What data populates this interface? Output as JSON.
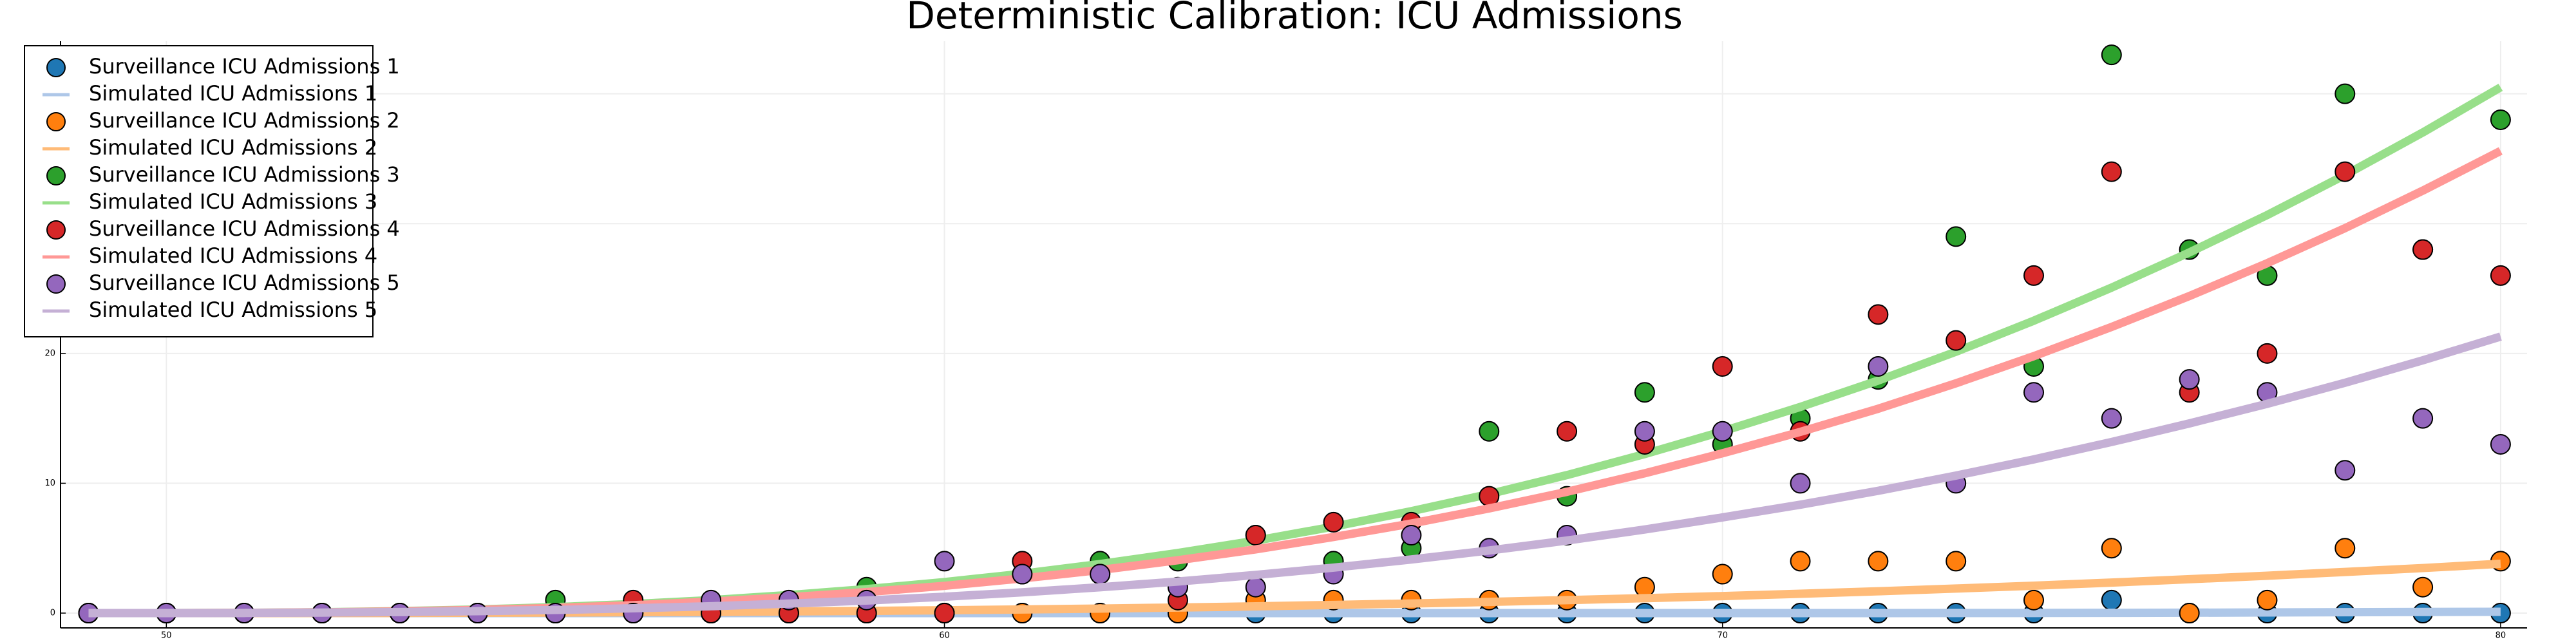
{
  "chart_data": {
    "type": "scatter",
    "title": "Deterministic Calibration: ICU Admissions",
    "x": [
      49,
      50,
      51,
      52,
      53,
      54,
      55,
      56,
      57,
      58,
      59,
      60,
      61,
      62,
      63,
      64,
      65,
      66,
      67,
      68,
      69,
      70,
      71,
      72,
      73,
      74,
      75,
      76,
      77,
      78,
      79,
      80
    ],
    "xlim": [
      48.64,
      80.34
    ],
    "xticks": [
      50,
      60,
      70,
      80
    ],
    "ylim": [
      -1.14,
      44.05
    ],
    "yticks": [
      0,
      10,
      20,
      30,
      40
    ],
    "grid": true,
    "legend": "upper left",
    "series": [
      {
        "name": "Surveillance ICU Admissions 1",
        "type": "scatter",
        "color": "#1f77b4",
        "values": [
          0,
          0,
          0,
          0,
          0,
          0,
          0,
          0,
          0,
          0,
          0,
          0,
          0,
          0,
          0,
          0,
          0,
          0,
          0,
          0,
          0,
          0,
          0,
          0,
          0,
          0,
          1,
          0,
          0,
          0,
          0,
          0
        ]
      },
      {
        "name": "Simulated ICU Admissions 1",
        "type": "line",
        "color": "#aec7e8",
        "values": [
          0,
          0,
          0,
          0,
          0,
          0,
          0,
          0,
          0,
          0,
          0,
          0,
          0,
          0,
          0,
          0,
          0,
          0,
          0,
          0,
          0,
          0,
          0,
          0,
          0.01,
          0.01,
          0.02,
          0.03,
          0.05,
          0.07,
          0.09,
          0.1
        ]
      },
      {
        "name": "Surveillance ICU Admissions 2",
        "type": "scatter",
        "color": "#ff7f0e",
        "values": [
          0,
          0,
          0,
          0,
          0,
          0,
          0,
          0,
          0,
          0,
          0,
          0,
          0,
          0,
          0,
          1,
          1,
          1,
          1,
          1,
          2,
          3,
          4,
          4,
          4,
          1,
          5,
          0,
          1,
          5,
          2,
          4
        ]
      },
      {
        "name": "Simulated ICU Admissions 2",
        "type": "line",
        "color": "#ffbb78",
        "values": [
          0,
          0,
          0,
          0.01,
          0.01,
          0.03,
          0.04,
          0.07,
          0.09,
          0.13,
          0.17,
          0.22,
          0.28,
          0.35,
          0.43,
          0.52,
          0.63,
          0.74,
          0.86,
          1,
          1.15,
          1.31,
          1.49,
          1.68,
          1.89,
          2.11,
          2.35,
          2.61,
          2.88,
          3.17,
          3.47,
          3.8
        ]
      },
      {
        "name": "Surveillance ICU Admissions 3",
        "type": "scatter",
        "color": "#2ca02c",
        "values": [
          0,
          0,
          0,
          0,
          0,
          0,
          1,
          0,
          0,
          0,
          2,
          0,
          3,
          4,
          4,
          6,
          4,
          5,
          14,
          9,
          17,
          13,
          15,
          18,
          29,
          19,
          43,
          28,
          26,
          40,
          28,
          38
        ]
      },
      {
        "name": "Simulated ICU Admissions 3",
        "type": "line",
        "color": "#98df8a",
        "values": [
          0,
          0,
          0.02,
          0.07,
          0.15,
          0.28,
          0.46,
          0.7,
          1,
          1.39,
          1.85,
          2.39,
          3.03,
          3.78,
          4.63,
          5.58,
          6.66,
          7.85,
          9.17,
          10.63,
          12.25,
          14,
          15.88,
          17.91,
          20.13,
          22.52,
          25.07,
          27.78,
          30.66,
          33.74,
          37.02,
          40.5
        ]
      },
      {
        "name": "Surveillance ICU Admissions 4",
        "type": "scatter",
        "color": "#d62728",
        "values": [
          0,
          0,
          0,
          0,
          0,
          0,
          0,
          1,
          0,
          0,
          0,
          0,
          4,
          3,
          1,
          6,
          7,
          7,
          9,
          14,
          13,
          19,
          14,
          23,
          21,
          26,
          34,
          17,
          20,
          34,
          28,
          26
        ]
      },
      {
        "name": "Simulated ICU Admissions 4",
        "type": "line",
        "color": "#ff9896",
        "values": [
          0,
          0,
          0.02,
          0.06,
          0.13,
          0.25,
          0.4,
          0.61,
          0.88,
          1.22,
          1.62,
          2.1,
          2.67,
          3.32,
          4.07,
          4.91,
          5.86,
          6.9,
          8.06,
          9.34,
          10.77,
          12.31,
          13.96,
          15.74,
          17.7,
          19.79,
          22.04,
          24.42,
          26.95,
          29.65,
          32.54,
          35.6
        ]
      },
      {
        "name": "Surveillance ICU Admissions 5",
        "type": "scatter",
        "color": "#9467bd",
        "values": [
          0,
          0,
          0,
          0,
          0,
          0,
          0,
          0,
          1,
          1,
          1,
          4,
          3,
          3,
          2,
          2,
          3,
          6,
          5,
          6,
          14,
          14,
          10,
          19,
          10,
          17,
          15,
          18,
          17,
          11,
          15,
          13
        ]
      },
      {
        "name": "Simulated ICU Admissions 5",
        "type": "line",
        "color": "#c5b0d5",
        "values": [
          0,
          0,
          0.01,
          0.04,
          0.08,
          0.15,
          0.24,
          0.37,
          0.53,
          0.73,
          0.97,
          1.26,
          1.6,
          1.99,
          2.43,
          2.94,
          3.5,
          4.13,
          4.82,
          5.59,
          6.44,
          7.37,
          8.35,
          9.42,
          10.59,
          11.84,
          13.18,
          14.61,
          16.12,
          17.74,
          19.47,
          21.3
        ]
      }
    ]
  }
}
